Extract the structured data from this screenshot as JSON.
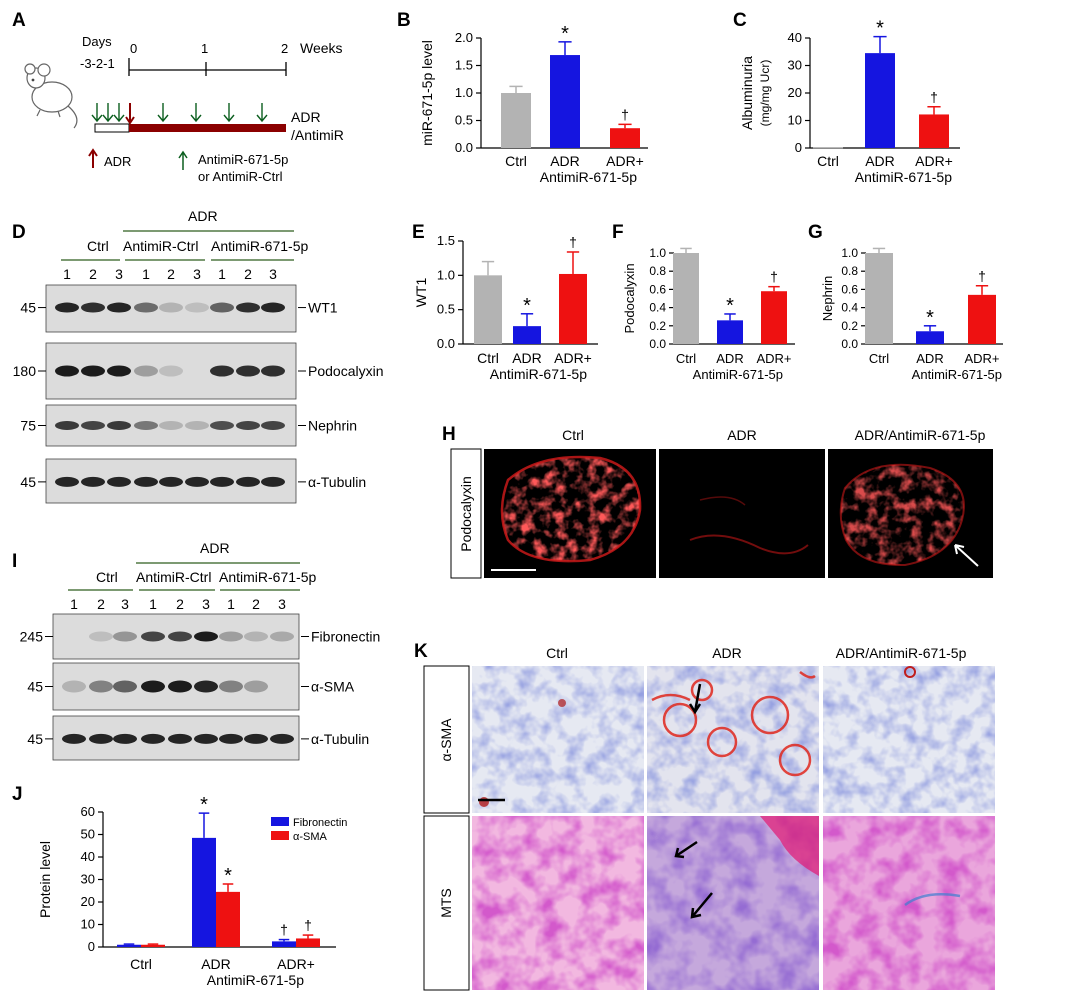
{
  "colors": {
    "ctrl": "#b3b3b3",
    "adr": "#1515e0",
    "anti": "#ee1111",
    "darkred": "#8b0000",
    "green": "#0b5e1e",
    "olive": "#2e5e1e"
  },
  "panels": {
    "A": "A",
    "B": "B",
    "C": "C",
    "D": "D",
    "E": "E",
    "F": "F",
    "G": "G",
    "H": "H",
    "I": "I",
    "J": "J",
    "K": "K"
  },
  "timeline": {
    "days_label": "Days",
    "days_ticks": "-3-2-1",
    "ticks": [
      "0",
      "1",
      "2"
    ],
    "weeks_label": "Weeks",
    "bar_label_1": "ADR",
    "bar_label_2": "/AntimiR",
    "legend_adr": "ADR",
    "legend_anti_1": "AntimiR-671-5p",
    "legend_anti_2": "or AntimiR-Ctrl"
  },
  "chart_data": [
    {
      "panel": "B",
      "type": "bar",
      "ylabel": "miR-671-5p level",
      "ylim": [
        0,
        2.0
      ],
      "yticks": [
        "0.0",
        "0.5",
        "1.0",
        "1.5",
        "2.0"
      ],
      "categories": [
        "Ctrl",
        "ADR",
        "ADR+"
      ],
      "cat_second": "AntimiR-671-5p",
      "values": [
        1.0,
        1.69,
        0.36
      ],
      "errors": [
        0.12,
        0.24,
        0.07
      ],
      "marks": [
        "",
        "*",
        "†"
      ]
    },
    {
      "panel": "C",
      "type": "bar",
      "ylabel": "Albuminuria",
      "ylabel2": "(mg/mg Ucr)",
      "ylim": [
        0,
        40
      ],
      "yticks": [
        "0",
        "10",
        "20",
        "30",
        "40"
      ],
      "categories": [
        "Ctrl",
        "ADR",
        "ADR+"
      ],
      "cat_second": "AntimiR-671-5p",
      "values": [
        0.2,
        34.5,
        12.2
      ],
      "errors": [
        0,
        6.0,
        2.8
      ],
      "marks": [
        "",
        "*",
        "†"
      ]
    },
    {
      "panel": "E",
      "type": "bar",
      "ylabel": "WT1",
      "ylim": [
        0,
        1.5
      ],
      "yticks": [
        "0.0",
        "0.5",
        "1.0",
        "1.5"
      ],
      "categories": [
        "Ctrl",
        "ADR",
        "ADR+"
      ],
      "cat_second": "AntimiR-671-5p",
      "values": [
        1.0,
        0.26,
        1.02
      ],
      "errors": [
        0.2,
        0.18,
        0.32
      ],
      "marks": [
        "",
        "*",
        "†"
      ]
    },
    {
      "panel": "F",
      "type": "bar",
      "ylabel": "Podocalyxin",
      "ylim": [
        0,
        1.0
      ],
      "yticks": [
        "0.0",
        "0.2",
        "0.4",
        "0.6",
        "0.8",
        "1.0"
      ],
      "categories": [
        "Ctrl",
        "ADR",
        "ADR+"
      ],
      "cat_second": "AntimiR-671-5p",
      "values": [
        1.0,
        0.26,
        0.58
      ],
      "errors": [
        0.05,
        0.07,
        0.05
      ],
      "marks": [
        "",
        "*",
        "†"
      ]
    },
    {
      "panel": "G",
      "type": "bar",
      "ylabel": "Nephrin",
      "ylim": [
        0,
        1.0
      ],
      "yticks": [
        "0.0",
        "0.2",
        "0.4",
        "0.6",
        "0.8",
        "1.0"
      ],
      "categories": [
        "Ctrl",
        "ADR",
        "ADR+"
      ],
      "cat_second": "AntimiR-671-5p",
      "values": [
        1.0,
        0.14,
        0.54
      ],
      "errors": [
        0.05,
        0.06,
        0.1
      ],
      "marks": [
        "",
        "*",
        "†"
      ]
    },
    {
      "panel": "J",
      "type": "bar",
      "ylabel": "Protein level",
      "ylim": [
        0,
        60
      ],
      "yticks": [
        "0",
        "10",
        "20",
        "30",
        "40",
        "50",
        "60"
      ],
      "categories": [
        "Ctrl",
        "ADR",
        "ADR+"
      ],
      "cat_second": "AntimiR-671-5p",
      "series": [
        {
          "name": "Fibronectin",
          "values": [
            1.0,
            48.5,
            2.5
          ],
          "errors": [
            0.3,
            11.0,
            0.8
          ],
          "marks": [
            "",
            "*",
            "†"
          ]
        },
        {
          "name": "α-SMA",
          "values": [
            1.0,
            24.5,
            3.8
          ],
          "errors": [
            0.3,
            3.5,
            1.5
          ],
          "marks": [
            "",
            "*",
            "†"
          ]
        }
      ]
    }
  ],
  "blotD": {
    "adr_header": "ADR",
    "groups": [
      "Ctrl",
      "AntimiR-Ctrl",
      "AntimiR-671-5p"
    ],
    "lanes": [
      "1",
      "2",
      "3",
      "1",
      "2",
      "3",
      "1",
      "2",
      "3"
    ],
    "rows": [
      {
        "mw": "45",
        "label": "WT1"
      },
      {
        "mw": "180",
        "label": "Podocalyxin"
      },
      {
        "mw": "75",
        "label": "Nephrin"
      },
      {
        "mw": "45",
        "label": "α-Tubulin"
      }
    ]
  },
  "blotI": {
    "adr_header": "ADR",
    "groups": [
      "Ctrl",
      "AntimiR-Ctrl",
      "AntimiR-671-5p"
    ],
    "lanes": [
      "1",
      "2",
      "3",
      "1",
      "2",
      "3",
      "1",
      "2",
      "3"
    ],
    "rows": [
      {
        "mw": "245",
        "label": "Fibronectin"
      },
      {
        "mw": "45",
        "label": "α-SMA"
      },
      {
        "mw": "45",
        "label": "α-Tubulin"
      }
    ]
  },
  "panelH": {
    "columns": [
      "Ctrl",
      "ADR",
      "ADR/AntimiR-671-5p"
    ],
    "row_label": "Podocalyxin"
  },
  "panelK": {
    "columns": [
      "Ctrl",
      "ADR",
      "ADR/AntimiR-671-5p"
    ],
    "row_labels": [
      "α-SMA",
      "MTS"
    ]
  }
}
